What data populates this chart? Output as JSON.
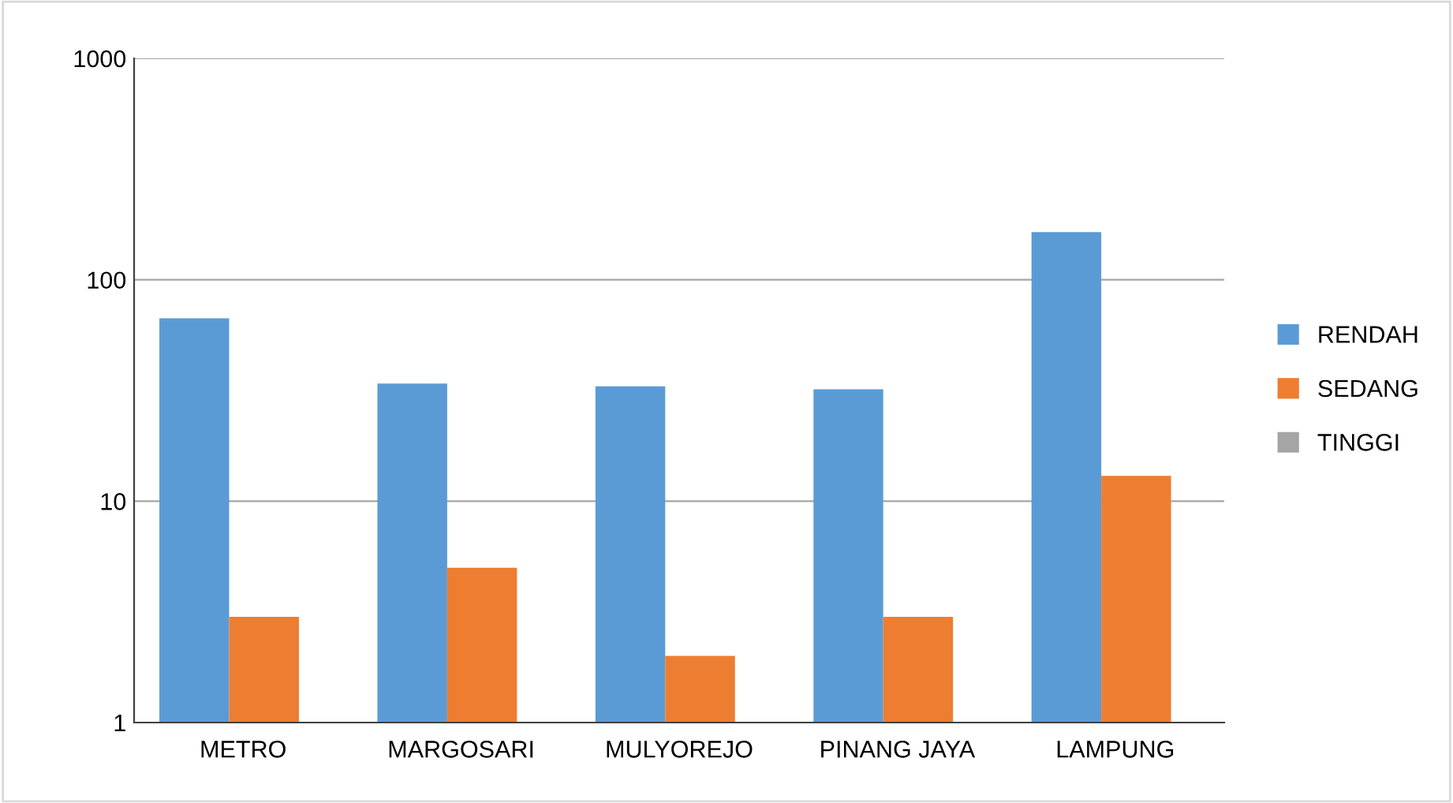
{
  "chart_data": {
    "type": "bar",
    "categories": [
      "METRO",
      "MARGOSARI",
      "MULYOREJO",
      "PINANG JAYA",
      "LAMPUNG"
    ],
    "series": [
      {
        "name": "RENDAH",
        "color": "#5b9bd5",
        "values": [
          67,
          34,
          33,
          32,
          164
        ]
      },
      {
        "name": "SEDANG",
        "color": "#ed7d31",
        "values": [
          3,
          5,
          2,
          3,
          13
        ]
      },
      {
        "name": "TINGGI",
        "color": "#a5a5a5",
        "values": [
          null,
          null,
          null,
          null,
          null
        ]
      }
    ],
    "log": true,
    "ylim": [
      1,
      1000
    ],
    "yticks": [
      1,
      10,
      100,
      1000
    ],
    "grid": "y",
    "legend": "right"
  }
}
